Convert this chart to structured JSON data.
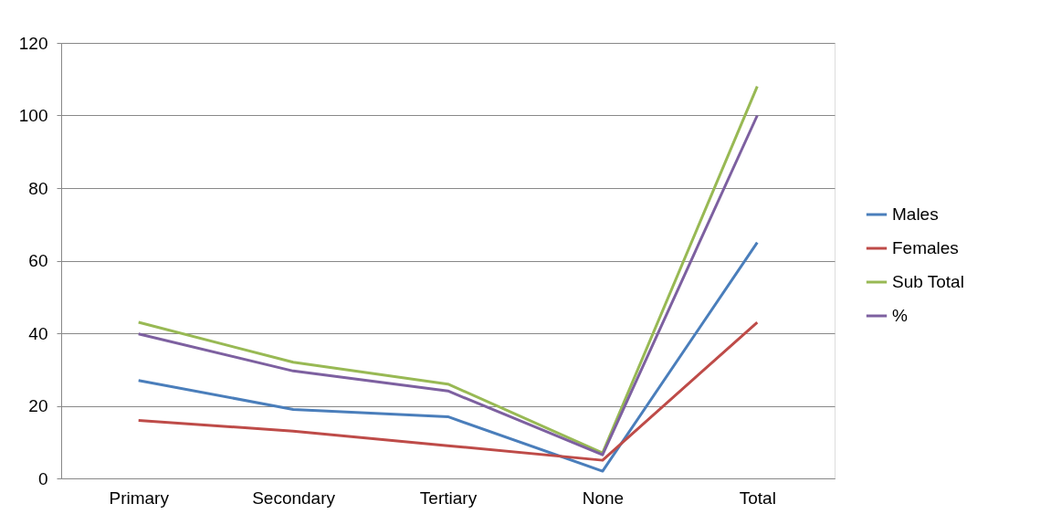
{
  "chart_data": {
    "type": "line",
    "categories": [
      "Primary",
      "Secondary",
      "Tertiary",
      "None",
      "Total"
    ],
    "series": [
      {
        "name": "Males",
        "color": "#4a7ebb",
        "values": [
          27,
          19,
          17,
          2,
          65
        ]
      },
      {
        "name": "Females",
        "color": "#be4b48",
        "values": [
          16,
          13,
          9,
          5,
          43
        ]
      },
      {
        "name": "Sub Total",
        "color": "#98b954",
        "values": [
          43,
          32,
          26,
          7,
          108
        ]
      },
      {
        "name": "%",
        "color": "#7d60a0",
        "values": [
          39.8,
          29.6,
          24.1,
          6.5,
          100
        ]
      }
    ],
    "ylim": [
      0,
      120
    ],
    "yticks": [
      0,
      20,
      40,
      60,
      80,
      100,
      120
    ],
    "grid": "y",
    "legend": "right",
    "marker": "none",
    "line_style": "solid"
  }
}
